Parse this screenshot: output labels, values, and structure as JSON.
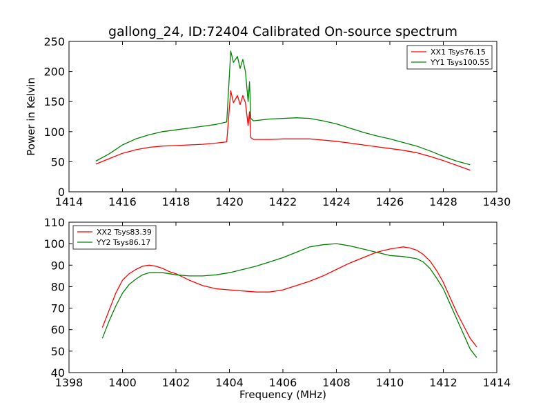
{
  "chart_data": [
    {
      "type": "line",
      "title": "gallong_24, ID:72404 Calibrated On-source spectrum",
      "xlabel": "",
      "ylabel": "Power in Kelvin",
      "xlim": [
        1414,
        1430
      ],
      "ylim": [
        0,
        250
      ],
      "xticks": [
        1414,
        1416,
        1418,
        1420,
        1422,
        1424,
        1426,
        1428,
        1430
      ],
      "yticks": [
        0,
        50,
        100,
        150,
        200,
        250
      ],
      "legend": "top-right",
      "series": [
        {
          "name": "XX1 Tsys76.15",
          "color": "#ff0000",
          "x": [
            1415.0,
            1415.5,
            1416.0,
            1416.5,
            1417.0,
            1417.5,
            1418.0,
            1418.5,
            1419.0,
            1419.5,
            1419.9,
            1420.05,
            1420.15,
            1420.3,
            1420.4,
            1420.5,
            1420.6,
            1420.7,
            1420.75,
            1420.8,
            1420.9,
            1421.5,
            1422.0,
            1422.5,
            1423.0,
            1423.5,
            1424.0,
            1424.5,
            1425.0,
            1425.5,
            1426.0,
            1426.5,
            1427.0,
            1427.5,
            1428.0,
            1428.5,
            1429.0
          ],
          "y": [
            46,
            55,
            64,
            70,
            74,
            76,
            77,
            78,
            79,
            81,
            83,
            168,
            148,
            160,
            145,
            160,
            148,
            110,
            133,
            90,
            87,
            87,
            88,
            88,
            88,
            86,
            84,
            81,
            78,
            75,
            72,
            69,
            65,
            59,
            52,
            44,
            36
          ]
        },
        {
          "name": "YY1 Tsys100.55",
          "color": "#008000",
          "x": [
            1415.0,
            1415.5,
            1416.0,
            1416.5,
            1417.0,
            1417.5,
            1418.0,
            1418.5,
            1419.0,
            1419.5,
            1419.9,
            1420.05,
            1420.15,
            1420.3,
            1420.4,
            1420.5,
            1420.6,
            1420.7,
            1420.75,
            1420.8,
            1420.9,
            1421.5,
            1422.0,
            1422.5,
            1423.0,
            1423.5,
            1424.0,
            1424.5,
            1425.0,
            1425.5,
            1426.0,
            1426.5,
            1427.0,
            1427.5,
            1428.0,
            1428.5,
            1429.0
          ],
          "y": [
            51,
            63,
            78,
            88,
            95,
            100,
            103,
            106,
            109,
            112,
            116,
            234,
            215,
            225,
            205,
            220,
            200,
            150,
            183,
            122,
            118,
            121,
            122,
            123,
            122,
            118,
            113,
            106,
            99,
            93,
            88,
            82,
            76,
            68,
            59,
            51,
            45
          ]
        }
      ]
    },
    {
      "type": "line",
      "title": "",
      "xlabel": "Frequency (MHz)",
      "ylabel": "",
      "xlim": [
        1398,
        1414
      ],
      "ylim": [
        40,
        110
      ],
      "xticks": [
        1398,
        1400,
        1402,
        1404,
        1406,
        1408,
        1410,
        1412,
        1414
      ],
      "yticks": [
        40,
        50,
        60,
        70,
        80,
        90,
        100,
        110
      ],
      "legend": "top-left",
      "series": [
        {
          "name": "XX2 Tsys83.39",
          "color": "#ff0000",
          "x": [
            1399.25,
            1399.5,
            1399.75,
            1400.0,
            1400.25,
            1400.5,
            1400.75,
            1401.0,
            1401.25,
            1401.5,
            1401.75,
            1402.0,
            1402.5,
            1403.0,
            1403.5,
            1404.0,
            1404.5,
            1405.0,
            1405.5,
            1406.0,
            1406.5,
            1407.0,
            1407.5,
            1408.0,
            1408.5,
            1409.0,
            1409.5,
            1410.0,
            1410.25,
            1410.5,
            1410.75,
            1411.0,
            1411.25,
            1411.5,
            1411.75,
            1412.0,
            1412.25,
            1412.5,
            1412.75,
            1413.0,
            1413.25
          ],
          "y": [
            61,
            69,
            77,
            83,
            86,
            88,
            89.5,
            90,
            89.5,
            88.5,
            87,
            86,
            83,
            80.5,
            79,
            78.5,
            78,
            77.5,
            77.5,
            78.5,
            80.5,
            82.5,
            85,
            88,
            91,
            93.5,
            96,
            97.5,
            98,
            98.5,
            98,
            97,
            95,
            92,
            87.5,
            82,
            75,
            68,
            62,
            56,
            52
          ]
        },
        {
          "name": "YY2 Tsys86.17",
          "color": "#008000",
          "x": [
            1399.25,
            1399.5,
            1399.75,
            1400.0,
            1400.25,
            1400.5,
            1400.75,
            1401.0,
            1401.25,
            1401.5,
            1401.75,
            1402.0,
            1402.5,
            1403.0,
            1403.5,
            1404.0,
            1404.5,
            1405.0,
            1405.5,
            1406.0,
            1406.5,
            1407.0,
            1407.5,
            1408.0,
            1408.5,
            1409.0,
            1409.5,
            1410.0,
            1410.5,
            1411.0,
            1411.25,
            1411.5,
            1411.75,
            1412.0,
            1412.25,
            1412.5,
            1412.75,
            1413.0,
            1413.25
          ],
          "y": [
            56,
            64,
            71,
            77,
            81,
            83.5,
            85.5,
            86.5,
            86.5,
            86.5,
            86,
            85.5,
            85,
            85,
            85.5,
            86.5,
            88,
            89.5,
            91.5,
            93.5,
            96,
            98.5,
            99.5,
            100,
            99,
            97.5,
            96,
            94.5,
            94,
            93,
            91.5,
            88.5,
            84,
            79,
            72,
            65,
            58,
            51,
            47
          ]
        }
      ]
    }
  ]
}
